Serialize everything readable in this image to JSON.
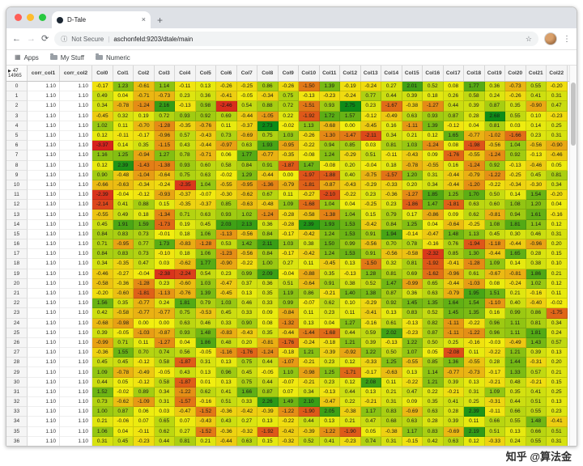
{
  "browser": {
    "tab_title": "D-Tale",
    "security_label": "Not Secure",
    "url": "aschonfeld:9203/dtale/main",
    "bookmarks": [
      "Apps",
      "My Stuff",
      "Numeric"
    ]
  },
  "icons": {
    "back": "←",
    "forward": "→",
    "reload": "⟳",
    "info": "ⓘ",
    "star": "☆",
    "menu": "⋮",
    "close_tab": "×",
    "new_tab": "+",
    "apps": "▦",
    "url_divider": "|"
  },
  "watermark": "知乎 @算法金",
  "grid": {
    "corner": {
      "expander": "▶",
      "col_count": "47",
      "row_count": "14965"
    },
    "corr_headers": [
      "corr_col1",
      "corr_col2"
    ],
    "corr_value": "1.10",
    "col_headers": [
      "Col0",
      "Col1",
      "Col2",
      "Col3",
      "Col4",
      "Col5",
      "Col6",
      "Col7",
      "Col8",
      "Col9",
      "Col10",
      "Col11",
      "Col12",
      "Col13",
      "Col14",
      "Col15",
      "Col16",
      "Col17",
      "Col18",
      "Col19",
      "Col20",
      "Col21",
      "Col22"
    ],
    "colormap": {
      "low": "#d7231d",
      "mid": "#f2ee0f",
      "high": "#0e8c18",
      "limit": 2.6
    },
    "rows": [
      {
        "idx": 0,
        "vals": [
          -0.17,
          1.23,
          -0.61,
          1.14,
          -0.11,
          0.13,
          -0.26,
          -0.25,
          0.86,
          -0.26,
          -1.5,
          1.39,
          -0.19,
          -0.24,
          0.27,
          2.01,
          0.52,
          0.08,
          1.77,
          0.36,
          -0.73,
          0.55,
          -0.2
        ]
      },
      {
        "idx": 1,
        "vals": [
          0.49,
          0.04,
          -0.71,
          -0.73,
          0.23,
          0.36,
          -0.41,
          -0.05,
          -0.34,
          0.75,
          -0.13,
          -0.23,
          -0.24,
          0.77,
          0.44,
          0.39,
          0.18,
          0.26,
          0.58,
          0.24,
          -0.26,
          0.41,
          0.31
        ]
      },
      {
        "idx": 2,
        "vals": [
          0.34,
          -0.78,
          -1.24,
          2.16,
          -0.13,
          0.98,
          -2.46,
          0.54,
          0.88,
          0.72,
          -1.51,
          0.93,
          2.75,
          0.23,
          -1.67,
          -0.38,
          -1.27,
          0.44,
          0.39,
          0.87,
          0.35,
          -0.9,
          0.47
        ]
      },
      {
        "idx": 3,
        "vals": [
          -0.45,
          0.32,
          0.19,
          0.72,
          0.93,
          0.92,
          0.69,
          -0.44,
          -1.05,
          0.22,
          -1.92,
          1.72,
          1.57,
          -0.12,
          -0.49,
          0.63,
          0.93,
          0.87,
          0.28,
          2.68,
          0.55,
          0.1,
          -0.23
        ]
      },
      {
        "idx": 4,
        "vals": [
          1.02,
          0.11,
          -0.7,
          -1.28,
          -0.35,
          -0.76,
          0.11,
          -0.37,
          2.73,
          -0.02,
          1.13,
          -0.68,
          0.0,
          -0.45,
          0.16,
          -1.11,
          1.39,
          -0.12,
          0.04,
          0.81,
          0.03,
          0.14,
          0.25
        ]
      },
      {
        "idx": 5,
        "vals": [
          0.12,
          -0.11,
          -0.17,
          -0.96,
          0.57,
          -0.43,
          0.73,
          -0.69,
          0.75,
          1.03,
          -0.26,
          -1.3,
          -1.47,
          -2.11,
          0.34,
          0.21,
          0.12,
          1.65,
          -0.77,
          -1.02,
          -1.66,
          0.23,
          0.31
        ]
      },
      {
        "idx": 6,
        "vals": [
          -3.37,
          0.14,
          0.35,
          -1.15,
          0.43,
          -0.44,
          -0.97,
          0.63,
          1.93,
          -0.95,
          -0.22,
          0.94,
          0.85,
          0.03,
          0.81,
          1.03,
          -1.24,
          0.08,
          -1.98,
          -0.56,
          1.04,
          -0.56,
          -0.9
        ]
      },
      {
        "idx": 7,
        "vals": [
          1.16,
          1.25,
          -0.94,
          1.27,
          0.78,
          -0.71,
          0.06,
          1.77,
          -0.77,
          -0.35,
          -0.08,
          1.24,
          -0.29,
          0.51,
          -0.11,
          -0.43,
          0.09,
          -1.76,
          -0.55,
          -1.24,
          0.92,
          -0.13,
          -0.46
        ]
      },
      {
        "idx": 8,
        "vals": [
          0.12,
          2.39,
          -1.43,
          -1.38,
          0.93,
          0.6,
          0.58,
          0.84,
          0.91,
          -1.87,
          1.47,
          -0.08,
          0.2,
          -0.04,
          0.18,
          -0.78,
          -0.55,
          0.16,
          -1.24,
          0.92,
          -0.13,
          -0.46,
          0.05
        ]
      },
      {
        "idx": 9,
        "vals": [
          0.9,
          -0.48,
          -1.04,
          -0.64,
          0.75,
          0.63,
          -0.02,
          1.29,
          -0.44,
          0.0,
          -1.97,
          -1.88,
          0.4,
          -0.75,
          -1.57,
          1.2,
          0.31,
          -0.44,
          -0.79,
          -1.22,
          -0.25,
          0.45,
          0.81
        ]
      },
      {
        "idx": 10,
        "vals": [
          -0.66,
          -0.63,
          -0.34,
          -0.24,
          -2.35,
          1.04,
          -0.55,
          -0.95,
          -1.36,
          -0.79,
          -1.81,
          -0.87,
          -0.43,
          -0.29,
          -0.33,
          0.2,
          0.34,
          -0.44,
          -1.2,
          -0.22,
          -0.34,
          -0.3,
          0.34
        ]
      },
      {
        "idx": 11,
        "vals": [
          -2.39,
          -0.04,
          -0.12,
          -0.93,
          -0.37,
          -0.07,
          -0.3,
          -0.62,
          0.67,
          0.11,
          -0.27,
          -2.1,
          -0.22,
          0.23,
          -0.36,
          -1.27,
          1.85,
          1.25,
          1.7,
          0.5,
          0.14,
          1.54,
          -0.2
        ]
      },
      {
        "idx": 12,
        "vals": [
          -2.14,
          0.41,
          0.88,
          0.15,
          -0.35,
          -0.37,
          0.85,
          -0.63,
          -0.48,
          1.09,
          -1.68,
          1.04,
          0.04,
          -0.25,
          0.23,
          -1.86,
          1.47,
          -1.81,
          0.63,
          0.6,
          1.08,
          1.2,
          0.04
        ]
      },
      {
        "idx": 13,
        "vals": [
          -0.55,
          0.49,
          0.18,
          -1.34,
          0.71,
          0.63,
          0.93,
          1.02,
          -1.24,
          -0.28,
          -0.58,
          -1.38,
          1.04,
          0.15,
          0.79,
          0.17,
          -0.86,
          0.09,
          0.62,
          -0.81,
          0.94,
          1.61,
          -0.16
        ]
      },
      {
        "idx": 14,
        "vals": [
          0.45,
          1.91,
          1.59,
          -1.73,
          0.19,
          0.45,
          2.03,
          2.13,
          0.36,
          -0.28,
          2.39,
          1.93,
          1.53,
          -0.42,
          0.84,
          1.25,
          0.04,
          -0.64,
          -0.25,
          1.08,
          1.81,
          1.14,
          0.12
        ]
      },
      {
        "idx": 15,
        "vals": [
          0.84,
          0.83,
          0.73,
          -0.01,
          0.18,
          1.06,
          -1.13,
          -0.56,
          0.84,
          -0.17,
          -0.42,
          1.24,
          1.53,
          0.91,
          1.94,
          -0.14,
          -0.47,
          1.48,
          1.13,
          0.45,
          0.3,
          0.46,
          0.31
        ]
      },
      {
        "idx": 16,
        "vals": [
          0.71,
          -0.95,
          0.77,
          1.73,
          -0.83,
          -1.28,
          0.53,
          1.42,
          2.11,
          1.03,
          0.38,
          1.5,
          0.99,
          -0.56,
          0.7,
          0.78,
          -0.16,
          0.76,
          -1.94,
          -1.18,
          -0.44,
          -0.96,
          0.2
        ]
      },
      {
        "idx": 17,
        "vals": [
          0.84,
          0.83,
          0.73,
          -0.1,
          0.18,
          1.06,
          -1.23,
          -0.56,
          0.84,
          -0.17,
          -0.42,
          1.24,
          1.53,
          0.91,
          -0.56,
          -0.58,
          -2.32,
          0.85,
          1.3,
          -0.44,
          1.65,
          0.28,
          0.15
        ]
      },
      {
        "idx": 18,
        "vals": [
          0.34,
          -0.35,
          0.47,
          0.03,
          -0.62,
          1.77,
          -0.9,
          -0.22,
          1.0,
          0.27,
          0.11,
          -0.45,
          0.13,
          -1.5,
          0.32,
          0.81,
          -1.92,
          -0.41,
          -1.28,
          1.09,
          0.14,
          0.38,
          0.1
        ]
      },
      {
        "idx": 19,
        "vals": [
          -0.46,
          -0.27,
          -0.04,
          -2.38,
          -2.24,
          0.54,
          0.23,
          0.99,
          2.09,
          -0.04,
          -0.88,
          0.35,
          -0.13,
          1.28,
          0.81,
          0.69,
          -1.62,
          -0.96,
          0.61,
          -0.67,
          -0.81,
          1.86,
          0.21
        ]
      },
      {
        "idx": 20,
        "vals": [
          -0.58,
          -0.36,
          -1.28,
          0.23,
          -0.6,
          1.03,
          -0.47,
          0.37,
          0.36,
          0.51,
          -0.64,
          0.91,
          0.38,
          0.52,
          1.47,
          -0.99,
          0.65,
          -0.44,
          -1.03,
          0.08,
          -0.24,
          1.02,
          0.12
        ]
      },
      {
        "idx": 21,
        "vals": [
          -0.2,
          -0.6,
          -1.81,
          -1.13,
          -0.76,
          1.39,
          -0.45,
          0.13,
          0.35,
          1.19,
          0.86,
          -0.21,
          1.4,
          1.38,
          0.87,
          0.36,
          0.63,
          -0.79,
          1.95,
          1.51,
          0.21,
          -0.16,
          0.11
        ]
      },
      {
        "idx": 22,
        "vals": [
          1.56,
          0.35,
          -0.77,
          0.24,
          1.81,
          0.79,
          1.03,
          0.46,
          0.33,
          0.99,
          -0.07,
          0.62,
          0.1,
          -0.29,
          0.92,
          1.45,
          1.35,
          1.64,
          1.54,
          -1.1,
          0.4,
          -0.4,
          -0.02
        ]
      },
      {
        "idx": 23,
        "vals": [
          0.42,
          -0.58,
          -0.77,
          -0.77,
          0.75,
          -0.53,
          0.45,
          0.33,
          0.09,
          -0.84,
          0.11,
          0.23,
          0.11,
          -0.41,
          0.13,
          0.83,
          0.52,
          1.45,
          1.35,
          0.16,
          0.99,
          0.86,
          -1.75
        ]
      },
      {
        "idx": 24,
        "vals": [
          -0.68,
          -0.98,
          0.0,
          0.0,
          0.63,
          0.46,
          0.33,
          0.9,
          0.08,
          -1.32,
          0.13,
          0.04,
          1.27,
          -0.16,
          0.61,
          -0.13,
          0.82,
          -1.11,
          -0.22,
          0.96,
          1.11,
          0.81,
          0.34
        ]
      },
      {
        "idx": 25,
        "vals": [
          0.39,
          -0.05,
          -1.03,
          -0.87,
          0.93,
          1.48,
          -0.83,
          -0.43,
          0.35,
          -0.44,
          -1.44,
          -1.68,
          0.44,
          0.59,
          2.02,
          -0.23,
          0.87,
          -1.11,
          -1.22,
          0.96,
          1.11,
          1.81,
          0.24
        ]
      },
      {
        "idx": 26,
        "vals": [
          -0.99,
          0.71,
          0.11,
          -1.27,
          0.04,
          1.86,
          0.48,
          0.2,
          -0.81,
          -1.76,
          -0.24,
          -0.18,
          1.21,
          0.39,
          -0.13,
          1.22,
          0.5,
          0.25,
          -0.16,
          -0.03,
          -0.49,
          1.43,
          0.57
        ]
      },
      {
        "idx": 27,
        "vals": [
          -0.36,
          1.55,
          0.7,
          0.74,
          0.56,
          -0.05,
          -1.16,
          -1.76,
          -1.24,
          -0.18,
          1.21,
          -0.39,
          -0.92,
          1.22,
          0.5,
          1.07,
          0.05,
          -2.08,
          0.11,
          -0.22,
          1.21,
          0.39,
          0.13
        ]
      },
      {
        "idx": 28,
        "vals": [
          0.45,
          0.45,
          -0.12,
          0.58,
          -1.87,
          0.31,
          0.13,
          0.75,
          0.44,
          -1.07,
          -0.21,
          0.23,
          0.12,
          -0.33,
          1.25,
          -0.55,
          0.85,
          1.36,
          -0.55,
          0.28,
          1.44,
          -0.31,
          0.2
        ]
      },
      {
        "idx": 29,
        "vals": [
          1.09,
          -0.78,
          -0.49,
          -0.05,
          0.43,
          0.13,
          0.96,
          0.45,
          -0.05,
          1.1,
          -0.98,
          1.25,
          -1.71,
          -0.17,
          -0.63,
          0.13,
          1.14,
          -0.77,
          -0.73,
          -0.17,
          1.33,
          0.57,
          0.21
        ]
      },
      {
        "idx": 30,
        "vals": [
          0.44,
          0.05,
          -0.12,
          0.58,
          -1.87,
          0.01,
          0.13,
          0.75,
          0.44,
          -0.07,
          -0.21,
          0.23,
          0.12,
          2.08,
          0.11,
          -0.22,
          1.21,
          0.39,
          0.13,
          -0.21,
          0.48,
          -0.21,
          0.15
        ]
      },
      {
        "idx": 31,
        "vals": [
          1.52,
          -0.02,
          0.89,
          0.34,
          -1.22,
          0.62,
          0.41,
          1.66,
          0.87,
          0.07,
          0.34,
          -0.13,
          0.44,
          0.13,
          0.21,
          0.47,
          0.22,
          -0.21,
          0.31,
          1.09,
          0.35,
          0.41,
          0.25
        ]
      },
      {
        "idx": 32,
        "vals": [
          0.73,
          -0.62,
          -1.09,
          0.31,
          -1.57,
          -0.16,
          0.51,
          0.33,
          2.26,
          1.49,
          2.1,
          -0.47,
          0.22,
          -0.21,
          0.31,
          0.09,
          0.35,
          0.41,
          0.25,
          -0.31,
          0.44,
          0.51,
          0.13
        ]
      },
      {
        "idx": 33,
        "vals": [
          1.0,
          0.87,
          0.06,
          0.03,
          -0.47,
          -1.52,
          -0.36,
          -0.42,
          -0.39,
          -1.22,
          -1.9,
          2.05,
          -0.38,
          1.17,
          0.83,
          -0.69,
          0.63,
          0.28,
          2.39,
          -0.11,
          0.66,
          0.55,
          0.23
        ]
      },
      {
        "idx": 34,
        "vals": [
          0.21,
          -0.06,
          0.07,
          0.65,
          0.07,
          -0.43,
          0.43,
          0.27,
          0.13,
          -0.22,
          0.44,
          0.13,
          0.21,
          0.47,
          0.68,
          0.63,
          0.28,
          0.39,
          0.11,
          0.66,
          0.55,
          1.48,
          -0.41
        ]
      },
      {
        "idx": 35,
        "vals": [
          1.06,
          0.04,
          -0.11,
          0.62,
          0.27,
          -1.52,
          -0.36,
          -0.32,
          -1.92,
          -0.42,
          -0.39,
          -1.22,
          -1.9,
          0.05,
          -0.38,
          1.17,
          0.83,
          -0.69,
          2.19,
          0.51,
          0.13,
          0.66,
          0.51
        ]
      },
      {
        "idx": 36,
        "vals": [
          0.31,
          0.45,
          -0.23,
          0.44,
          0.81,
          0.21,
          -0.44,
          0.63,
          0.15,
          -0.32,
          0.52,
          0.41,
          -0.23,
          0.74,
          0.31,
          -0.15,
          0.42,
          0.63,
          0.12,
          -0.33,
          0.24,
          0.55,
          0.31
        ]
      }
    ]
  }
}
